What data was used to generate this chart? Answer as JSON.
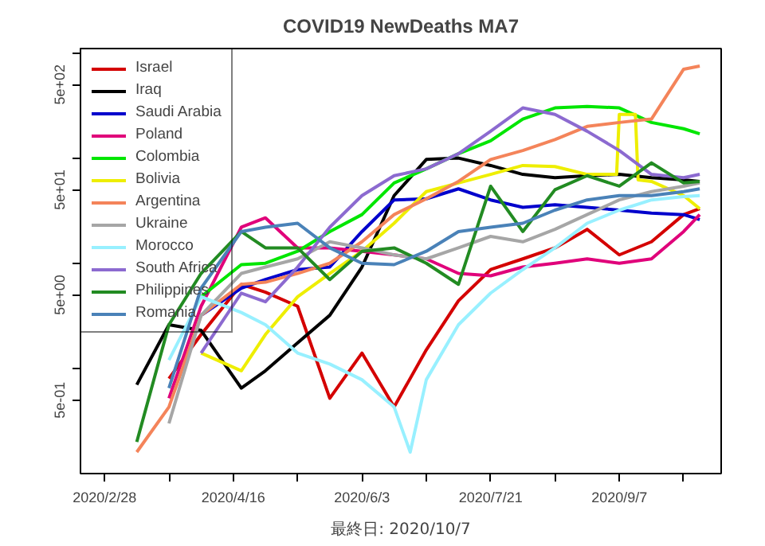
{
  "chart_data": {
    "type": "line",
    "title": "COVID19 NewDeaths MA7",
    "annotations": [
      "最終日: 2020/10/7"
    ],
    "x": [
      "2020-03-11",
      "2020-03-23",
      "2020-04-04",
      "2020-04-19",
      "2020-04-28",
      "2020-05-10",
      "2020-05-22",
      "2020-06-03",
      "2020-06-15",
      "2020-06-27",
      "2020-07-09",
      "2020-07-21",
      "2020-08-02",
      "2020-08-14",
      "2020-08-26",
      "2020-09-07",
      "2020-09-19",
      "2020-10-01",
      "2020-10-07"
    ],
    "series": [
      {
        "name": "Israel",
        "color": "#d40000",
        "values": [
          null,
          0.8,
          2.1,
          6.3,
          5.3,
          3.9,
          0.52,
          1.4,
          0.43,
          1.5,
          4.4,
          8.7,
          11,
          14,
          21,
          12,
          16,
          29,
          33
        ]
      },
      {
        "name": "Iraq",
        "color": "#000000",
        "values": [
          0.7,
          2.6,
          2.3,
          0.65,
          0.95,
          1.75,
          3.2,
          9.2,
          44,
          97,
          100,
          85,
          70,
          65,
          68,
          70,
          65,
          62,
          60
        ]
      },
      {
        "name": "Saudi Arabia",
        "color": "#0000cc",
        "values": [
          null,
          null,
          3.2,
          5.8,
          7,
          8.7,
          9.2,
          20,
          40,
          41,
          51,
          40,
          34,
          36,
          34,
          32,
          30,
          29,
          26
        ]
      },
      {
        "name": "Poland",
        "color": "#e0007a",
        "values": [
          null,
          0.52,
          3.9,
          22,
          27,
          14,
          14,
          13,
          12,
          11,
          8,
          7.6,
          9.2,
          10,
          11,
          10,
          11,
          20,
          29
        ]
      },
      {
        "name": "Colombia",
        "color": "#00e600",
        "values": [
          null,
          null,
          4.8,
          9.7,
          10,
          13,
          20,
          29,
          58,
          79,
          110,
          146,
          235,
          300,
          310,
          300,
          218,
          190,
          170
        ]
      },
      {
        "name": "Bolivia",
        "color": "#eeee00",
        "x": [
          "2020-04-04",
          "2020-04-19",
          "2020-04-28",
          "2020-05-10",
          "2020-05-22",
          "2020-06-03",
          "2020-06-15",
          "2020-06-27",
          "2020-07-09",
          "2020-07-21",
          "2020-08-02",
          "2020-08-14",
          "2020-08-26",
          "2020-09-06",
          "2020-09-07",
          "2020-09-13",
          "2020-09-14",
          "2020-09-19",
          "2020-10-01",
          "2020-10-07"
        ],
        "values": [
          1.4,
          0.95,
          2.1,
          4.8,
          8,
          13,
          24,
          48,
          58,
          70,
          85,
          83,
          70,
          70,
          260,
          260,
          62,
          60,
          44,
          33
        ]
      },
      {
        "name": "Argentina",
        "color": "#f4845a",
        "values": [
          0.16,
          0.43,
          3.2,
          6.3,
          6.6,
          8,
          10,
          16,
          29,
          41,
          60,
          97,
          118,
          150,
          200,
          218,
          235,
          700,
          750
        ]
      },
      {
        "name": "Ukraine",
        "color": "#a6a6a6",
        "values": [
          null,
          0.3,
          3.2,
          8,
          9.2,
          11,
          16,
          14,
          12,
          11,
          14,
          18,
          16,
          21,
          29,
          40,
          48,
          54,
          58
        ]
      },
      {
        "name": "Morocco",
        "color": "#98f0ff",
        "x": [
          "2020-03-23",
          "2020-04-04",
          "2020-04-19",
          "2020-04-28",
          "2020-05-10",
          "2020-05-22",
          "2020-06-03",
          "2020-06-15",
          "2020-06-21",
          "2020-06-27",
          "2020-07-09",
          "2020-07-21",
          "2020-08-02",
          "2020-08-14",
          "2020-08-26",
          "2020-09-07",
          "2020-09-19",
          "2020-10-01",
          "2020-10-07"
        ],
        "values": [
          1.2,
          4.8,
          3.4,
          2.6,
          1.4,
          1.1,
          0.78,
          0.43,
          0.16,
          0.78,
          2.6,
          5.2,
          8.7,
          14,
          24,
          32,
          40,
          43,
          44
        ]
      },
      {
        "name": "South Africa",
        "color": "#8c6ad0",
        "values": [
          null,
          null,
          1.4,
          5.2,
          4.3,
          9.2,
          22,
          44,
          68,
          79,
          110,
          180,
          300,
          260,
          180,
          118,
          70,
          65,
          70
        ]
      },
      {
        "name": "Philippines",
        "color": "#228b22",
        "values": [
          0.2,
          2.6,
          8,
          20,
          14,
          14,
          7,
          13,
          14,
          10,
          6.3,
          54,
          20,
          50,
          68,
          54,
          90,
          58,
          60
        ]
      },
      {
        "name": "Romania",
        "color": "#4a82b8",
        "values": [
          null,
          0.65,
          5.8,
          20,
          22,
          24,
          14,
          10,
          9.7,
          13,
          20,
          22,
          24,
          32,
          40,
          44,
          44,
          48,
          51
        ]
      }
    ],
    "xlim": [
      "2020-02-19",
      "2020-10-15"
    ],
    "xticks": [
      {
        "value": "2020-02-28",
        "label": "2020/2/28"
      },
      {
        "value": "2020-03-23",
        "label": null
      },
      {
        "value": "2020-04-16",
        "label": "2020/4/16"
      },
      {
        "value": "2020-05-10",
        "label": null
      },
      {
        "value": "2020-06-03",
        "label": "2020/6/3"
      },
      {
        "value": "2020-06-27",
        "label": null
      },
      {
        "value": "2020-07-21",
        "label": "2020/7/21"
      },
      {
        "value": "2020-08-14",
        "label": null
      },
      {
        "value": "2020-09-07",
        "label": "2020/9/7"
      },
      {
        "value": "2020-10-01",
        "label": null
      }
    ],
    "ylim": [
      0.1,
      1100
    ],
    "yticks": [
      {
        "value": 0.5,
        "label": "5e-01"
      },
      {
        "value": 1,
        "label": null
      },
      {
        "value": 5,
        "label": "5e+00"
      },
      {
        "value": 10,
        "label": null
      },
      {
        "value": 50,
        "label": "5e+01"
      },
      {
        "value": 100,
        "label": null
      },
      {
        "value": 500,
        "label": "5e+02"
      },
      {
        "value": 1000,
        "label": null
      }
    ],
    "log": "y",
    "legend": "top left",
    "line_style": "solid"
  }
}
